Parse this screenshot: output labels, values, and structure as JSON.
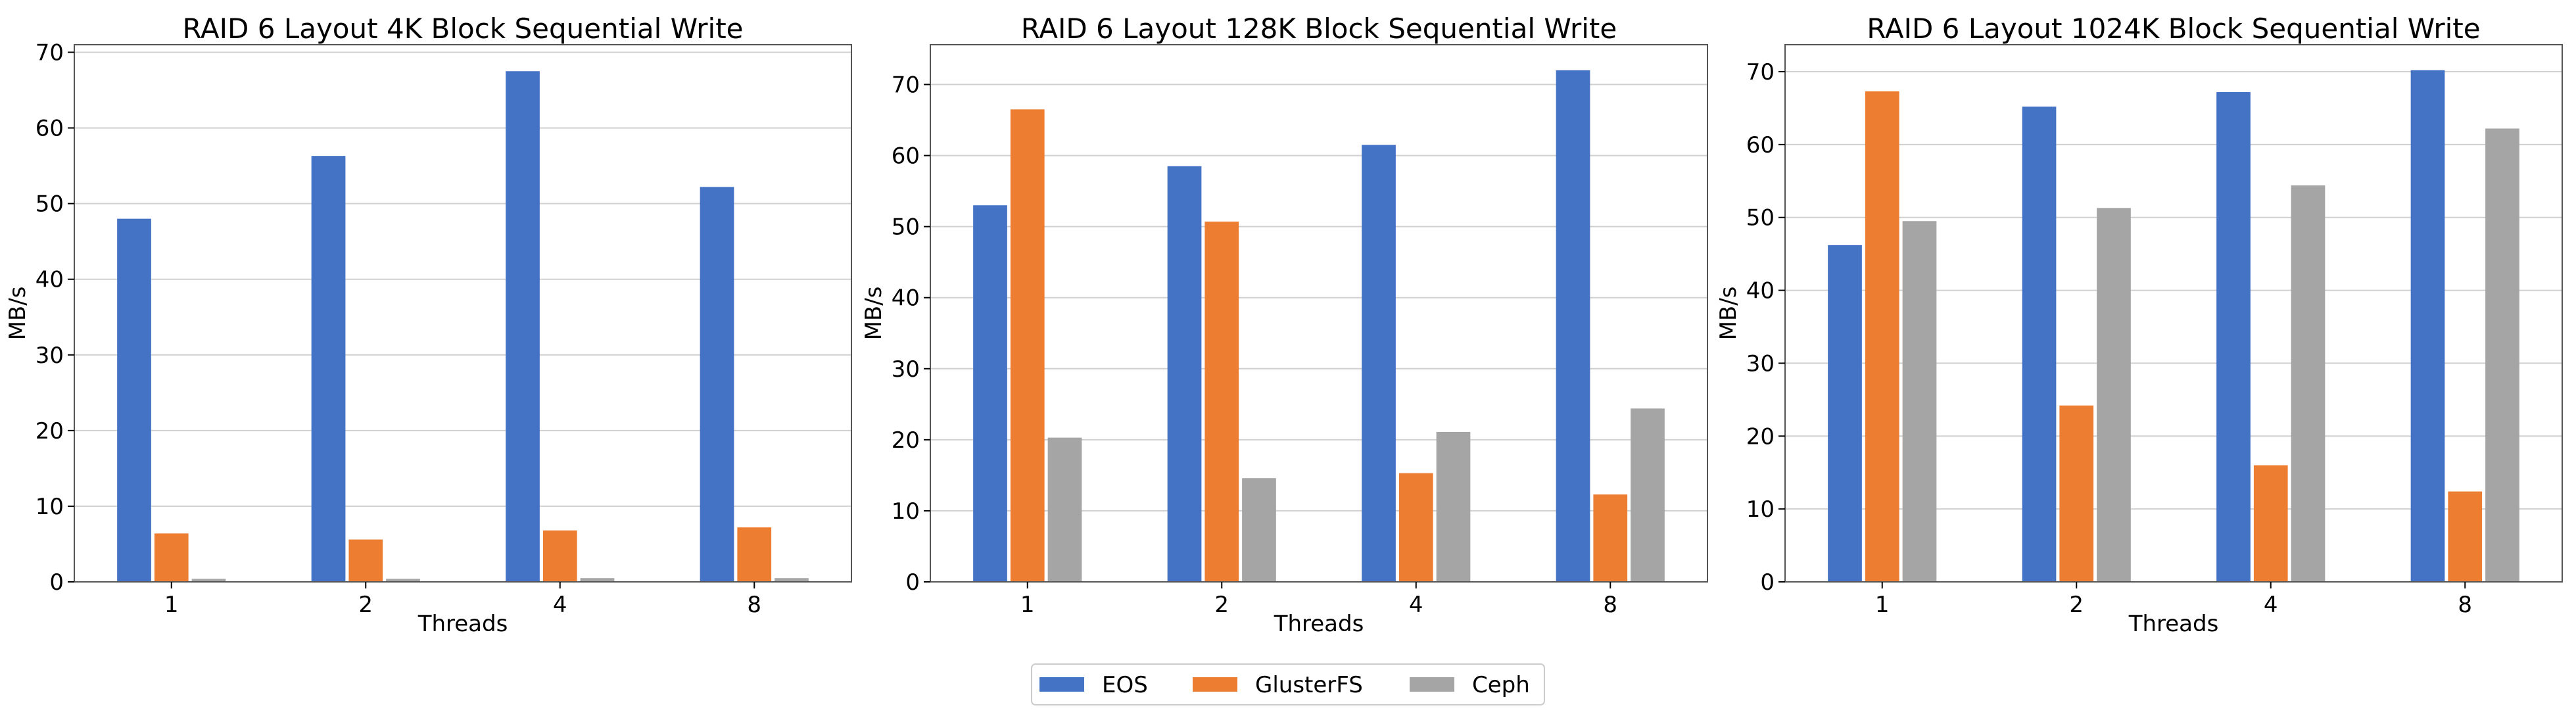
{
  "series_colors": {
    "EOS": "#4472c4",
    "GlusterFS": "#ed7d31",
    "Ceph": "#a5a5a5"
  },
  "legend": {
    "placement": "bottom-center",
    "entries": [
      "EOS",
      "GlusterFS",
      "Ceph"
    ]
  },
  "chart_data": [
    {
      "type": "bar",
      "title": "RAID 6 Layout 4K Block Sequential Write",
      "xlabel": "Threads",
      "ylabel": "MB/s",
      "categories": [
        "1",
        "2",
        "4",
        "8"
      ],
      "ylim": [
        0,
        71
      ],
      "yticks": [
        0,
        10,
        20,
        30,
        40,
        50,
        60,
        70
      ],
      "grid": true,
      "series": [
        {
          "name": "EOS",
          "values": [
            48.0,
            56.3,
            67.5,
            52.2
          ]
        },
        {
          "name": "GlusterFS",
          "values": [
            6.4,
            5.6,
            6.8,
            7.2
          ]
        },
        {
          "name": "Ceph",
          "values": [
            0.4,
            0.4,
            0.5,
            0.5
          ]
        }
      ]
    },
    {
      "type": "bar",
      "title": "RAID 6 Layout 128K Block Sequential Write",
      "xlabel": "Threads",
      "ylabel": "MB/s",
      "categories": [
        "1",
        "2",
        "4",
        "8"
      ],
      "ylim": [
        0,
        75.6
      ],
      "yticks": [
        0,
        10,
        20,
        30,
        40,
        50,
        60,
        70
      ],
      "grid": true,
      "series": [
        {
          "name": "EOS",
          "values": [
            53.0,
            58.5,
            61.5,
            72.0
          ]
        },
        {
          "name": "GlusterFS",
          "values": [
            66.5,
            50.7,
            15.3,
            12.3
          ]
        },
        {
          "name": "Ceph",
          "values": [
            20.3,
            14.6,
            21.1,
            24.4
          ]
        }
      ]
    },
    {
      "type": "bar",
      "title": "RAID 6 Layout 1024K Block Sequential Write",
      "xlabel": "Threads",
      "ylabel": "MB/s",
      "categories": [
        "1",
        "2",
        "4",
        "8"
      ],
      "ylim": [
        0,
        73.7
      ],
      "yticks": [
        0,
        10,
        20,
        30,
        40,
        50,
        60,
        70
      ],
      "grid": true,
      "series": [
        {
          "name": "EOS",
          "values": [
            46.2,
            65.2,
            67.2,
            70.2
          ]
        },
        {
          "name": "GlusterFS",
          "values": [
            67.3,
            24.2,
            16.0,
            12.4
          ]
        },
        {
          "name": "Ceph",
          "values": [
            49.5,
            51.3,
            54.4,
            62.2
          ]
        }
      ]
    }
  ]
}
